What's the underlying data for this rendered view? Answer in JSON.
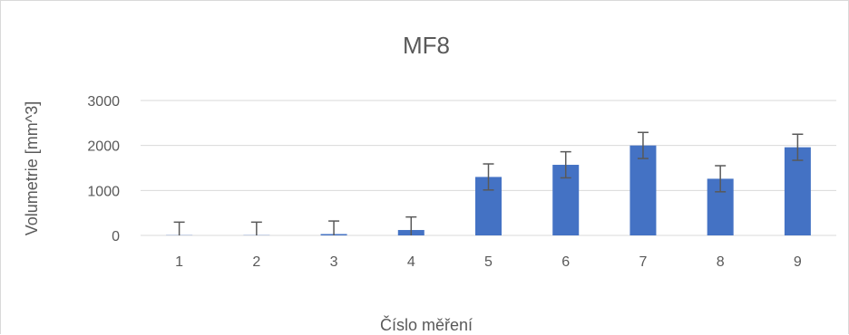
{
  "chart_data": {
    "type": "bar",
    "title": "MF8",
    "xlabel": "Číslo měření",
    "ylabel": "Volumetrie [mm^3]",
    "categories": [
      "1",
      "2",
      "3",
      "4",
      "5",
      "6",
      "7",
      "8",
      "9"
    ],
    "series": [
      {
        "values": [
          5,
          5,
          30,
          120,
          1300,
          1570,
          2000,
          1260,
          1960
        ],
        "error": [
          290,
          290,
          290,
          290,
          290,
          290,
          290,
          290,
          290
        ]
      }
    ],
    "ylim": [
      0,
      3000
    ],
    "yticks": [
      "0",
      "1000",
      "2000",
      "3000"
    ],
    "grid": true,
    "legend": "none",
    "colors": {
      "bar": "#4472c4",
      "gridline": "#d9d9d9",
      "errorbar": "#595959",
      "text": "#595959"
    }
  }
}
